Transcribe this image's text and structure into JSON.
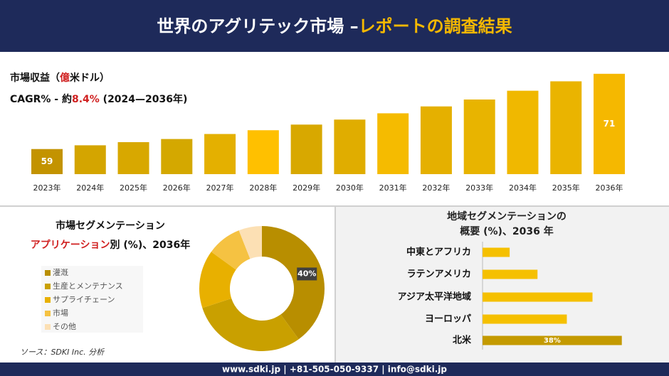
{
  "header": {
    "title": "世界のアグリテック市場 –",
    "title_highlight": "レポートの調査結果"
  },
  "chart_data": [
    {
      "type": "bar",
      "subtitle": [
        "市場収益（",
        "億",
        "米ドル）"
      ],
      "subtitle2": [
        "CAGR% - 約",
        "8.4%",
        " (2024—2036年)"
      ],
      "categories": [
        "2023年",
        "2024年",
        "2025年",
        "2026年",
        "2027年",
        "2028年",
        "2029年",
        "2030年",
        "2031年",
        "2032年",
        "2033年",
        "2034年",
        "2035年",
        "2036年"
      ],
      "values": [
        59,
        59.6,
        60.1,
        60.6,
        61.4,
        62.0,
        62.9,
        63.7,
        64.7,
        65.8,
        66.9,
        68.3,
        69.8,
        71
      ],
      "value_labels": [
        "59",
        null,
        null,
        null,
        null,
        null,
        null,
        null,
        null,
        null,
        null,
        null,
        null,
        "71"
      ],
      "colors": [
        "#c39300",
        "#d4a500",
        "#d8a800",
        "#d4a800",
        "#e4b000",
        "#ffc000",
        "#d8a800",
        "#e0ad00",
        "#f5bb00",
        "#e5b000",
        "#e8b400",
        "#f0b800",
        "#eab400",
        "#f5b800"
      ],
      "ylim": [
        55,
        72
      ]
    },
    {
      "type": "donut",
      "title": "市場セグメンテーション",
      "subtitle": [
        "アプリケーション",
        "別 (%)、2036年"
      ],
      "categories": [
        "灌漑",
        "生産とメンテナンス",
        "サプライチェーン",
        "市場",
        "その他"
      ],
      "values": [
        40,
        30,
        15,
        9,
        6
      ],
      "value_labels": [
        "40%",
        null,
        null,
        null,
        null
      ],
      "colors": [
        "#b88e00",
        "#c9a000",
        "#e8b000",
        "#f5c242",
        "#fce0b4"
      ]
    },
    {
      "type": "barh",
      "title": [
        "地域セグメンテーションの",
        "概要 (%)、2036 年"
      ],
      "categories": [
        "中東とアフリカ",
        "ラテンアメリカ",
        "アジア太平洋地域",
        "ヨーロッパ",
        "北米"
      ],
      "values": [
        7.4,
        15,
        30,
        23,
        38
      ],
      "value_labels": [
        null,
        null,
        null,
        null,
        "38%"
      ],
      "colors": [
        "#f5c000",
        "#f5c000",
        "#f5c000",
        "#f5c000",
        "#c49a00"
      ],
      "xlim": [
        0,
        40
      ]
    }
  ],
  "source": "ソース：SDKI Inc. 分析",
  "footer": "www.sdki.jp | +81-505-050-9337 | info@sdki.jp"
}
